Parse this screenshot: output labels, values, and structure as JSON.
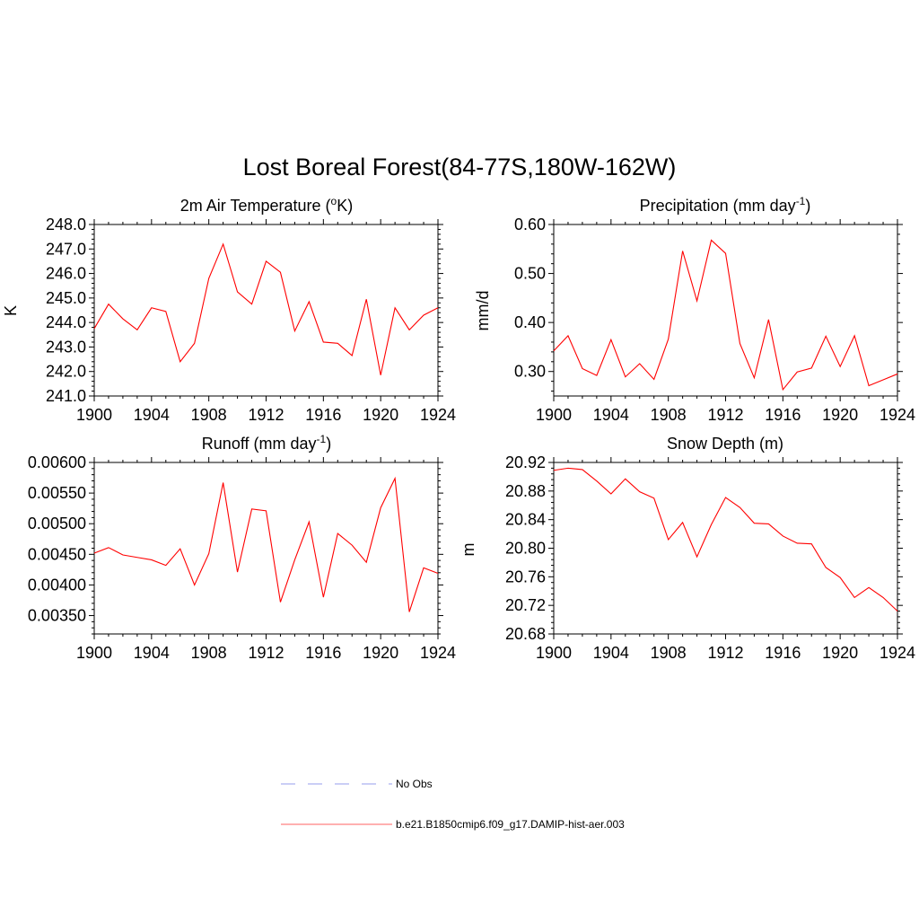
{
  "figure": {
    "title": "Lost Boreal Forest(84-77S,180W-162W)"
  },
  "legend": {
    "placement": "bottom-center",
    "entries": [
      {
        "label": "No Obs",
        "color": "#aab0f0",
        "style": "dashed"
      },
      {
        "label": "b.e21.B1850cmip6.f09_g17.DAMIP-hist-aer.003",
        "color": "#ff0000",
        "style": "solid"
      }
    ]
  },
  "panels": {
    "temp": {
      "title_main": "2m Air Temperature (",
      "title_sup": "o",
      "title_end": "K)",
      "ylabel": "K"
    },
    "precip": {
      "title_main": "Precipitation (mm day",
      "title_sup": "-1",
      "title_end": ")",
      "ylabel": "mm/d"
    },
    "runoff": {
      "title_main": "Runoff (mm day",
      "title_sup": "-1",
      "title_end": ")",
      "ylabel": ""
    },
    "snow": {
      "title_main": "Snow Depth (m)",
      "title_sup": "",
      "title_end": "",
      "ylabel": "m"
    }
  },
  "chart_data": [
    {
      "id": "temp",
      "type": "line",
      "title": "2m Air Temperature (oK)",
      "xlabel": "",
      "ylabel": "K",
      "xlim": [
        1900,
        1924
      ],
      "ylim": [
        241.0,
        248.0
      ],
      "xticks": [
        1900,
        1904,
        1908,
        1912,
        1916,
        1920,
        1924
      ],
      "yticks": [
        241.0,
        242.0,
        243.0,
        244.0,
        245.0,
        246.0,
        247.0,
        248.0
      ],
      "ytick_labels": [
        "241.0",
        "242.0",
        "243.0",
        "244.0",
        "245.0",
        "246.0",
        "247.0",
        "248.0"
      ],
      "grid": false,
      "series": [
        {
          "color": "#ff0000",
          "x": [
            1900,
            1901,
            1902,
            1903,
            1904,
            1905,
            1906,
            1907,
            1908,
            1909,
            1910,
            1911,
            1912,
            1913,
            1914,
            1915,
            1916,
            1917,
            1918,
            1919,
            1920,
            1921,
            1922,
            1923,
            1924
          ],
          "y": [
            243.75,
            244.75,
            244.15,
            243.7,
            244.6,
            244.45,
            242.4,
            243.15,
            245.8,
            247.2,
            245.25,
            244.75,
            246.5,
            246.05,
            243.65,
            244.85,
            243.2,
            243.15,
            242.65,
            244.95,
            241.85,
            244.6,
            243.7,
            244.3,
            244.6
          ]
        }
      ]
    },
    {
      "id": "precip",
      "type": "line",
      "title": "Precipitation (mm day-1)",
      "xlabel": "",
      "ylabel": "mm/d",
      "xlim": [
        1900,
        1924
      ],
      "ylim": [
        0.25,
        0.6
      ],
      "xticks": [
        1900,
        1904,
        1908,
        1912,
        1916,
        1920,
        1924
      ],
      "yticks": [
        0.3,
        0.4,
        0.5,
        0.6
      ],
      "ytick_labels": [
        "0.30",
        "0.40",
        "0.50",
        "0.60"
      ],
      "grid": false,
      "series": [
        {
          "color": "#ff0000",
          "x": [
            1900,
            1901,
            1902,
            1903,
            1904,
            1905,
            1906,
            1907,
            1908,
            1909,
            1910,
            1911,
            1912,
            1913,
            1914,
            1915,
            1916,
            1917,
            1918,
            1919,
            1920,
            1921,
            1922,
            1923,
            1924
          ],
          "y": [
            0.342,
            0.373,
            0.306,
            0.292,
            0.365,
            0.289,
            0.316,
            0.284,
            0.366,
            0.546,
            0.444,
            0.568,
            0.541,
            0.357,
            0.287,
            0.406,
            0.263,
            0.299,
            0.307,
            0.372,
            0.31,
            0.373,
            0.271,
            0.283,
            0.295
          ]
        }
      ]
    },
    {
      "id": "runoff",
      "type": "line",
      "title": "Runoff (mm day-1)",
      "xlabel": "",
      "ylabel": "",
      "xlim": [
        1900,
        1924
      ],
      "ylim": [
        0.0032,
        0.006
      ],
      "xticks": [
        1900,
        1904,
        1908,
        1912,
        1916,
        1920,
        1924
      ],
      "yticks": [
        0.0035,
        0.004,
        0.0045,
        0.005,
        0.0055,
        0.006
      ],
      "ytick_labels": [
        "0.00350",
        "0.00400",
        "0.00450",
        "0.00500",
        "0.00550",
        "0.00600"
      ],
      "grid": false,
      "series": [
        {
          "color": "#ff0000",
          "x": [
            1900,
            1901,
            1902,
            1903,
            1904,
            1905,
            1906,
            1907,
            1908,
            1909,
            1910,
            1911,
            1912,
            1913,
            1914,
            1915,
            1916,
            1917,
            1918,
            1919,
            1920,
            1921,
            1922,
            1923,
            1924
          ],
          "y": [
            0.00452,
            0.00461,
            0.00449,
            0.00445,
            0.00441,
            0.00432,
            0.00459,
            0.004,
            0.00451,
            0.00567,
            0.00421,
            0.00524,
            0.00521,
            0.00372,
            0.00441,
            0.00503,
            0.0038,
            0.00484,
            0.00465,
            0.00437,
            0.00526,
            0.00574,
            0.00356,
            0.00428,
            0.00419
          ]
        }
      ]
    },
    {
      "id": "snow",
      "type": "line",
      "title": "Snow Depth (m)",
      "xlabel": "",
      "ylabel": "m",
      "xlim": [
        1900,
        1924
      ],
      "ylim": [
        20.68,
        20.92
      ],
      "xticks": [
        1900,
        1904,
        1908,
        1912,
        1916,
        1920,
        1924
      ],
      "yticks": [
        20.68,
        20.72,
        20.76,
        20.8,
        20.84,
        20.88,
        20.92
      ],
      "ytick_labels": [
        "20.68",
        "20.72",
        "20.76",
        "20.80",
        "20.84",
        "20.88",
        "20.92"
      ],
      "grid": false,
      "series": [
        {
          "color": "#ff0000",
          "x": [
            1900,
            1901,
            1902,
            1903,
            1904,
            1905,
            1906,
            1907,
            1908,
            1909,
            1910,
            1911,
            1912,
            1913,
            1914,
            1915,
            1916,
            1917,
            1918,
            1919,
            1920,
            1921,
            1922,
            1923,
            1924
          ],
          "y": [
            20.909,
            20.912,
            20.91,
            20.894,
            20.876,
            20.897,
            20.879,
            20.87,
            20.812,
            20.836,
            20.788,
            20.833,
            20.871,
            20.857,
            20.835,
            20.834,
            20.817,
            20.807,
            20.806,
            20.773,
            20.759,
            20.731,
            20.745,
            20.731,
            20.712
          ]
        }
      ]
    }
  ]
}
